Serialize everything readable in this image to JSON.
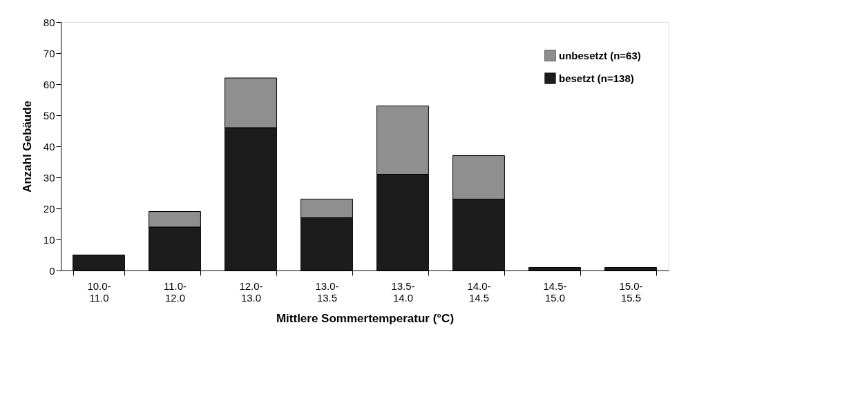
{
  "chart_data": {
    "type": "bar",
    "stacked": true,
    "xlabel": "Mittlere Sommertemperatur (°C)",
    "ylabel": "Anzahl Gebäude",
    "categories": [
      "10.0-\n11.0",
      "11.0-\n12.0",
      "12.0-\n13.0",
      "13.0-\n13.5",
      "13.5-\n14.0",
      "14.0-\n14.5",
      "14.5-\n15.0",
      "15.0-\n15.5"
    ],
    "series": [
      {
        "name": "besetzt (n=138)",
        "color": "#1c1c1c",
        "values": [
          5,
          14,
          46,
          17,
          31,
          23,
          1,
          1
        ]
      },
      {
        "name": "unbesetzt (n=63)",
        "color": "#8f8f8f",
        "values": [
          0,
          5,
          16,
          6,
          22,
          14,
          0,
          0
        ]
      }
    ],
    "ylim": [
      0,
      80
    ],
    "yticks": [
      0,
      10,
      20,
      30,
      40,
      50,
      60,
      70,
      80
    ],
    "grid": false,
    "legend": "top right"
  }
}
